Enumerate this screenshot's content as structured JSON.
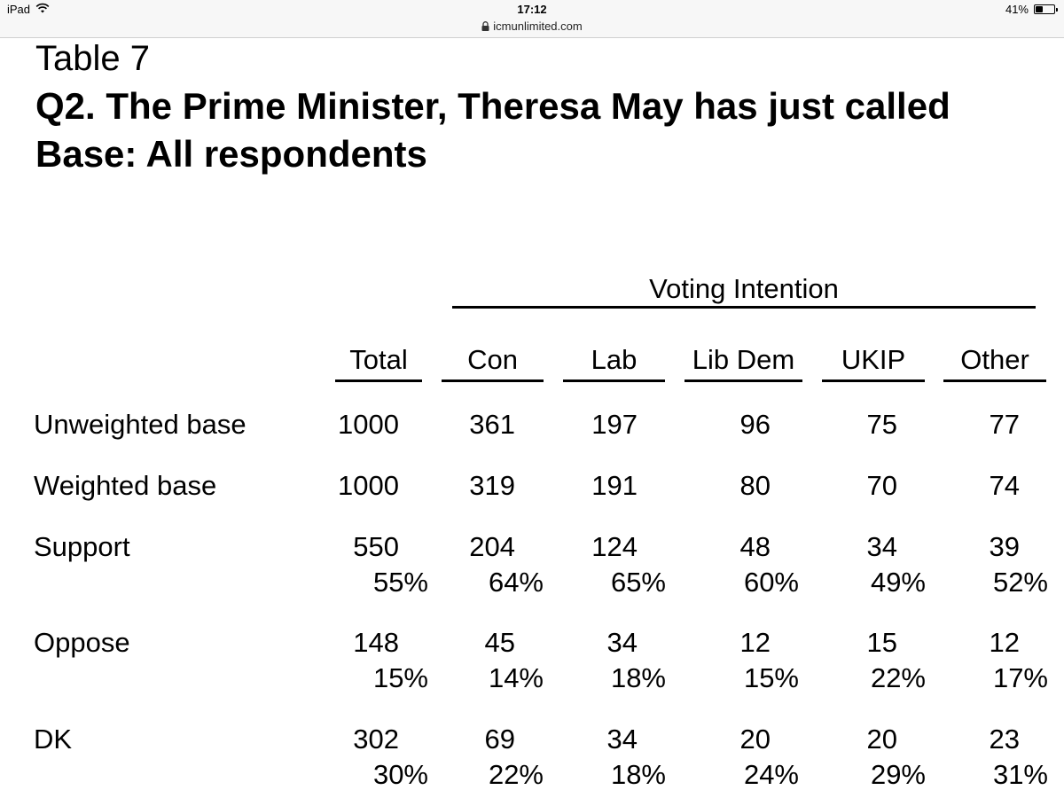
{
  "status_bar": {
    "device": "iPad",
    "time": "17:12",
    "url": "icmunlimited.com",
    "battery_text": "41%",
    "battery_level": 0.41
  },
  "header": {
    "table_label": "Table 7",
    "question": "Q2. The Prime Minister, Theresa May has just called",
    "base": "Base: All respondents"
  },
  "banner": {
    "label": "Voting Intention"
  },
  "columns": {
    "total": "Total",
    "con": "Con",
    "lab": "Lab",
    "libdem": "Lib Dem",
    "ukip": "UKIP",
    "other": "Other"
  },
  "rows": {
    "unweighted": {
      "label": "Unweighted base",
      "values": [
        "1000",
        "361",
        "197",
        "96",
        "75",
        "77"
      ]
    },
    "weighted": {
      "label": "Weighted base",
      "values": [
        "1000",
        "319",
        "191",
        "80",
        "70",
        "74"
      ]
    },
    "support": {
      "label": "Support",
      "counts": [
        "550",
        "204",
        "124",
        "48",
        "34",
        "39"
      ],
      "pcts": [
        "55%",
        "64%",
        "65%",
        "60%",
        "49%",
        "52%"
      ]
    },
    "oppose": {
      "label": "Oppose",
      "counts": [
        "148",
        "45",
        "34",
        "12",
        "15",
        "12"
      ],
      "pcts": [
        "15%",
        "14%",
        "18%",
        "15%",
        "22%",
        "17%"
      ]
    },
    "dk": {
      "label": "DK",
      "counts": [
        "302",
        "69",
        "34",
        "20",
        "20",
        "23"
      ],
      "pcts": [
        "30%",
        "22%",
        "18%",
        "24%",
        "29%",
        "31%"
      ]
    }
  }
}
